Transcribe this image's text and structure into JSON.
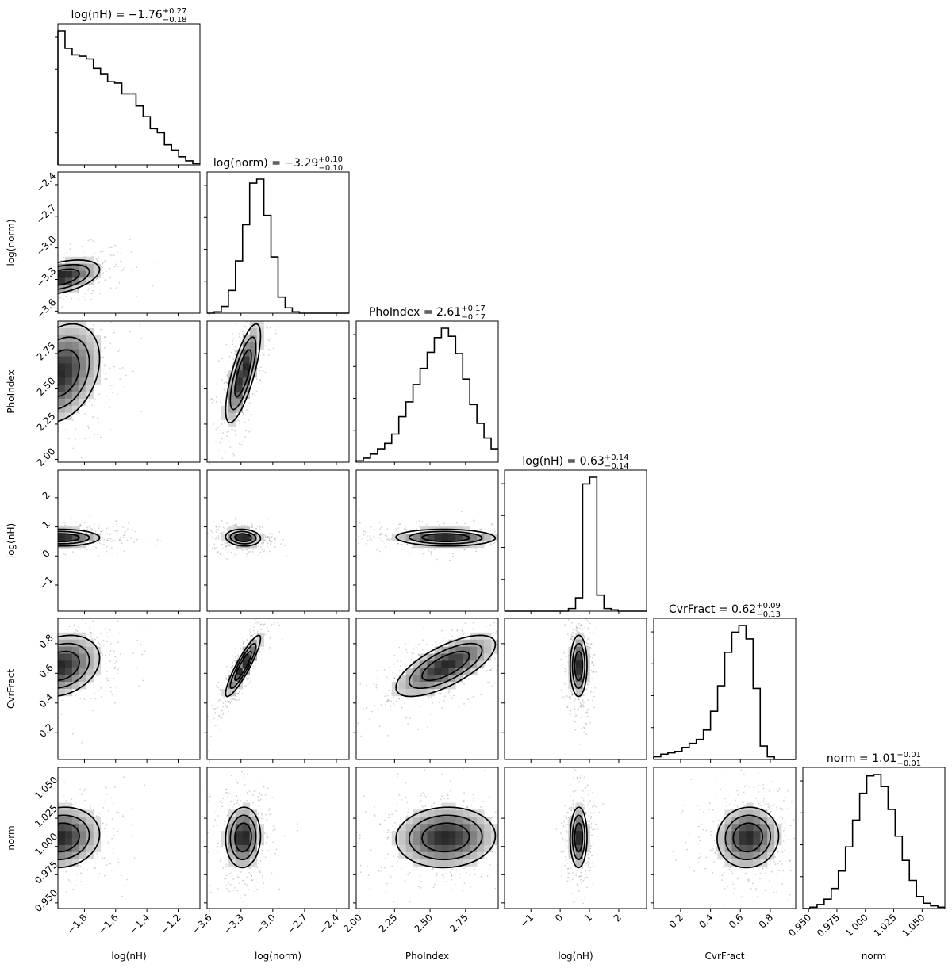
{
  "chart_data": {
    "type": "corner",
    "parameters": [
      {
        "key": "lognH1",
        "label": "log(nH)",
        "title_prefix": "log(nH) = ",
        "median": "−1.76",
        "upper": "+0.27",
        "lower": "−0.18",
        "range": [
          -1.97,
          -1.06
        ],
        "ticks": [
          -1.8,
          -1.6,
          -1.4,
          -1.2
        ],
        "tick_labels": [
          "−1.8",
          "−1.6",
          "−1.4",
          "−1.2"
        ],
        "center": -1.95,
        "spread": 0.12
      },
      {
        "key": "lognorm",
        "label": "log(norm)",
        "title_prefix": "log(norm) = ",
        "median": "−3.29",
        "upper": "+0.10",
        "lower": "−0.10",
        "range": [
          -3.62,
          -2.28
        ],
        "ticks": [
          -3.6,
          -3.3,
          -3.0,
          -2.7,
          -2.4
        ],
        "tick_labels": [
          "−3.6",
          "−3.3",
          "−3.0",
          "−2.7",
          "−2.4"
        ],
        "center": -3.28,
        "spread": 0.08
      },
      {
        "key": "PhoIndex",
        "label": "PhoIndex",
        "title_prefix": "PhoIndex = ",
        "median": "2.61",
        "upper": "+0.17",
        "lower": "−0.17",
        "range": [
          1.98,
          2.98
        ],
        "ticks": [
          2.0,
          2.25,
          2.5,
          2.75
        ],
        "tick_labels": [
          "2.00",
          "2.25",
          "2.50",
          "2.75"
        ],
        "center": 2.61,
        "spread": 0.17
      },
      {
        "key": "lognH2",
        "label": "log(nH)",
        "title_prefix": "log(nH) = ",
        "median": "0.63",
        "upper": "+0.14",
        "lower": "−0.14",
        "range": [
          -1.9,
          2.95
        ],
        "ticks": [
          -1,
          0,
          1,
          2
        ],
        "tick_labels": [
          "−1",
          "0",
          "1",
          "2"
        ],
        "center": 0.63,
        "spread": 0.14
      },
      {
        "key": "CvrFract",
        "label": "CvrFract",
        "title_prefix": "CvrFract = ",
        "median": "0.62",
        "upper": "+0.09",
        "lower": "−0.13",
        "range": [
          0.02,
          0.97
        ],
        "ticks": [
          0.2,
          0.4,
          0.6,
          0.8
        ],
        "tick_labels": [
          "0.2",
          "0.4",
          "0.6",
          "0.8"
        ],
        "center": 0.65,
        "spread": 0.1
      },
      {
        "key": "norm",
        "label": "norm",
        "title_prefix": "norm = ",
        "median": "1.01",
        "upper": "+0.01",
        "lower": "−0.01",
        "range": [
          0.945,
          1.07
        ],
        "ticks": [
          0.95,
          0.975,
          1.0,
          1.025,
          1.05
        ],
        "tick_labels": [
          "0.950",
          "0.975",
          "1.000",
          "1.025",
          "1.050"
        ],
        "center": 1.008,
        "spread": 0.013
      }
    ],
    "histograms": [
      [
        1.0,
        0.87,
        0.82,
        0.81,
        0.79,
        0.72,
        0.68,
        0.62,
        0.61,
        0.53,
        0.53,
        0.44,
        0.36,
        0.27,
        0.24,
        0.15,
        0.11,
        0.06,
        0.03,
        0.01
      ],
      [
        0.0,
        0.01,
        0.05,
        0.17,
        0.39,
        0.66,
        0.97,
        1.0,
        0.73,
        0.42,
        0.12,
        0.04,
        0.01,
        0.0,
        0.0,
        0.0,
        0.0,
        0.0,
        0.0,
        0.0
      ],
      [
        0.01,
        0.03,
        0.06,
        0.1,
        0.14,
        0.21,
        0.34,
        0.45,
        0.58,
        0.7,
        0.82,
        0.93,
        1.0,
        0.94,
        0.81,
        0.62,
        0.43,
        0.29,
        0.18,
        0.1
      ],
      [
        0.0,
        0.0,
        0.0,
        0.0,
        0.0,
        0.0,
        0.0,
        0.0,
        0.0,
        0.02,
        0.1,
        0.95,
        1.0,
        0.12,
        0.02,
        0.01,
        0.0,
        0.0,
        0.0,
        0.0
      ],
      [
        0.02,
        0.04,
        0.05,
        0.06,
        0.09,
        0.12,
        0.15,
        0.22,
        0.36,
        0.55,
        0.8,
        0.95,
        1.0,
        0.9,
        0.53,
        0.1,
        0.02,
        0.0,
        0.0,
        0.0
      ],
      [
        0.0,
        0.01,
        0.03,
        0.07,
        0.15,
        0.28,
        0.46,
        0.66,
        0.86,
        0.99,
        1.0,
        0.91,
        0.74,
        0.54,
        0.36,
        0.21,
        0.09,
        0.04,
        0.02,
        0.01
      ]
    ],
    "correlations": [
      [
        0,
        0.45,
        0.3,
        -0.02,
        0.25,
        0.1
      ],
      [
        0.45,
        0,
        0.75,
        -0.1,
        0.9,
        0.05
      ],
      [
        0.3,
        0.75,
        0,
        -0.05,
        0.7,
        0.05
      ],
      [
        -0.02,
        -0.1,
        -0.05,
        0,
        0.02,
        0.02
      ],
      [
        0.25,
        0.9,
        0.7,
        0.02,
        0,
        0.05
      ],
      [
        0.1,
        0.05,
        0.05,
        0.02,
        0.05,
        0
      ]
    ],
    "colors": {
      "line": "#000000",
      "points": "#9a9a9a",
      "density_dark": "#000000",
      "density_light": "#ffffff",
      "frame": "#000000"
    }
  }
}
